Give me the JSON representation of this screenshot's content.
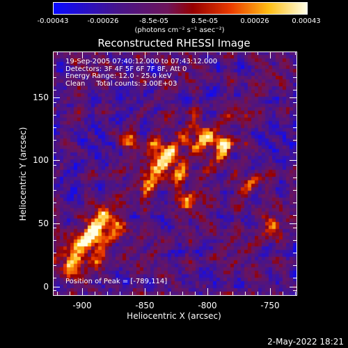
{
  "colorbar": {
    "labels": [
      "-0.00043",
      "-0.00026",
      "-8.5e-05",
      "8.5e-05",
      "0.00026",
      "0.00043"
    ],
    "units": "(photons cm⁻² s⁻¹ asec⁻²)",
    "colors": [
      "#0000ff",
      "#4b0082",
      "#8b0000",
      "#ff4500",
      "#ffd700",
      "#ffffff"
    ]
  },
  "title": "Reconstructed RHESSI Image",
  "info": {
    "line1": "19-Sep-2005 07:40:12.000 to 07:43:12.000",
    "line2": "Detectors: 3F 4F 5F 6F 7F 8F, Att 0",
    "line3": "Energy Range: 12.0 - 25.0 keV",
    "line4": "Clean     Total counts: 3.00E+03"
  },
  "peak": "Position of Peak = [-789,114]",
  "axes": {
    "xlabel": "Heliocentric X (arcsec)",
    "ylabel": "Heliocentric Y (arcsec)",
    "xticks": [
      "-900",
      "-850",
      "-800",
      "-750"
    ],
    "yticks": [
      "0",
      "50",
      "100",
      "150"
    ],
    "xrange": [
      -925,
      -730
    ],
    "yrange": [
      -5,
      190
    ]
  },
  "datestamp": "2-May-2022 18:21"
}
